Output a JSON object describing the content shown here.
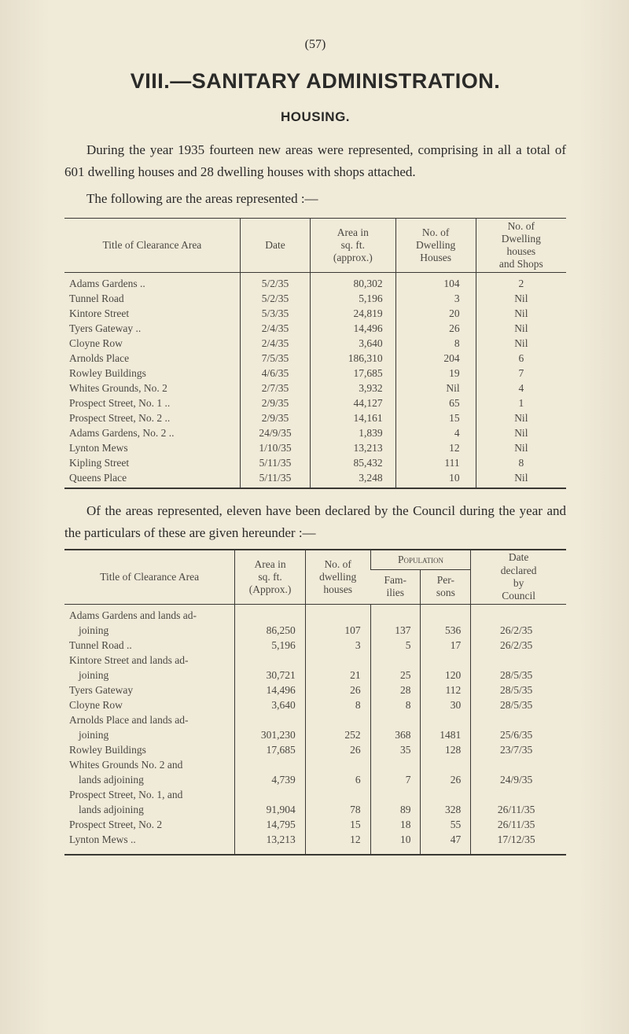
{
  "page_number_label": "(57)",
  "heading": "VIII.—SANITARY ADMINISTRATION.",
  "subheading": "HOUSING.",
  "para1": "During the year 1935 fourteen new areas were represented, comprising in all a total of 601 dwelling houses and 28 dwelling houses with shops attached.",
  "para2": "The following are the areas represented :—",
  "table1": {
    "headers": {
      "c1": "Title of Clearance Area",
      "c2": "Date",
      "c3": "Area in\nsq. ft.\n(approx.)",
      "c4": "No. of\nDwelling\nHouses",
      "c5": "No. of\nDwelling\nhouses\nand Shops"
    },
    "rows": [
      [
        "Adams Gardens ..",
        "5/2/35",
        "80,302",
        "104",
        "2"
      ],
      [
        "Tunnel Road",
        "5/2/35",
        "5,196",
        "3",
        "Nil"
      ],
      [
        "Kintore Street",
        "5/3/35",
        "24,819",
        "20",
        "Nil"
      ],
      [
        "Tyers Gateway ..",
        "2/4/35",
        "14,496",
        "26",
        "Nil"
      ],
      [
        "Cloyne Row",
        "2/4/35",
        "3,640",
        "8",
        "Nil"
      ],
      [
        "Arnolds Place",
        "7/5/35",
        "186,310",
        "204",
        "6"
      ],
      [
        "Rowley Buildings",
        "4/6/35",
        "17,685",
        "19",
        "7"
      ],
      [
        "Whites Grounds, No. 2",
        "2/7/35",
        "3,932",
        "Nil",
        "4"
      ],
      [
        "Prospect Street, No. 1 ..",
        "2/9/35",
        "44,127",
        "65",
        "1"
      ],
      [
        "Prospect Street, No. 2 ..",
        "2/9/35",
        "14,161",
        "15",
        "Nil"
      ],
      [
        "Adams Gardens, No. 2 ..",
        "24/9/35",
        "1,839",
        "4",
        "Nil"
      ],
      [
        "Lynton Mews",
        "1/10/35",
        "13,213",
        "12",
        "Nil"
      ],
      [
        "Kipling Street",
        "5/11/35",
        "85,432",
        "111",
        "8"
      ],
      [
        "Queens Place",
        "5/11/35",
        "3,248",
        "10",
        "Nil"
      ]
    ]
  },
  "para3": "Of the areas represented, eleven have been declared by the Council during the year and the particulars of these are given hereunder :—",
  "table2": {
    "headers": {
      "c1": "Title of Clearance Area",
      "c2": "Area in\nsq. ft.\n(Approx.)",
      "c3": "No. of\ndwelling\nhouses",
      "csuper": "Population",
      "c4": "Fam-\nilies",
      "c5": "Per-\nsons",
      "c6": "Date\ndeclared\nby\nCouncil"
    },
    "rows": [
      {
        "label1": "Adams Gardens and lands ad-",
        "label2": "joining",
        "c2": "86,250",
        "c3": "107",
        "c4": "137",
        "c5": "536",
        "c6": "26/2/35"
      },
      {
        "label1": "Tunnel Road ..",
        "label2": "",
        "c2": "5,196",
        "c3": "3",
        "c4": "5",
        "c5": "17",
        "c6": "26/2/35"
      },
      {
        "label1": "Kintore Street and lands ad-",
        "label2": "joining",
        "c2": "30,721",
        "c3": "21",
        "c4": "25",
        "c5": "120",
        "c6": "28/5/35"
      },
      {
        "label1": "Tyers Gateway",
        "label2": "",
        "c2": "14,496",
        "c3": "26",
        "c4": "28",
        "c5": "112",
        "c6": "28/5/35"
      },
      {
        "label1": "Cloyne Row",
        "label2": "",
        "c2": "3,640",
        "c3": "8",
        "c4": "8",
        "c5": "30",
        "c6": "28/5/35"
      },
      {
        "label1": "Arnolds Place and lands ad-",
        "label2": "joining",
        "c2": "301,230",
        "c3": "252",
        "c4": "368",
        "c5": "1481",
        "c6": "25/6/35"
      },
      {
        "label1": "Rowley Buildings",
        "label2": "",
        "c2": "17,685",
        "c3": "26",
        "c4": "35",
        "c5": "128",
        "c6": "23/7/35"
      },
      {
        "label1": "Whites Grounds No. 2 and",
        "label2": "lands adjoining",
        "c2": "4,739",
        "c3": "6",
        "c4": "7",
        "c5": "26",
        "c6": "24/9/35"
      },
      {
        "label1": "Prospect Street, No. 1, and",
        "label2": "lands adjoining",
        "c2": "91,904",
        "c3": "78",
        "c4": "89",
        "c5": "328",
        "c6": "26/11/35"
      },
      {
        "label1": "Prospect Street, No. 2",
        "label2": "",
        "c2": "14,795",
        "c3": "15",
        "c4": "18",
        "c5": "55",
        "c6": "26/11/35"
      },
      {
        "label1": "Lynton Mews ..",
        "label2": "",
        "c2": "13,213",
        "c3": "12",
        "c4": "10",
        "c5": "47",
        "c6": "17/12/35"
      }
    ]
  }
}
